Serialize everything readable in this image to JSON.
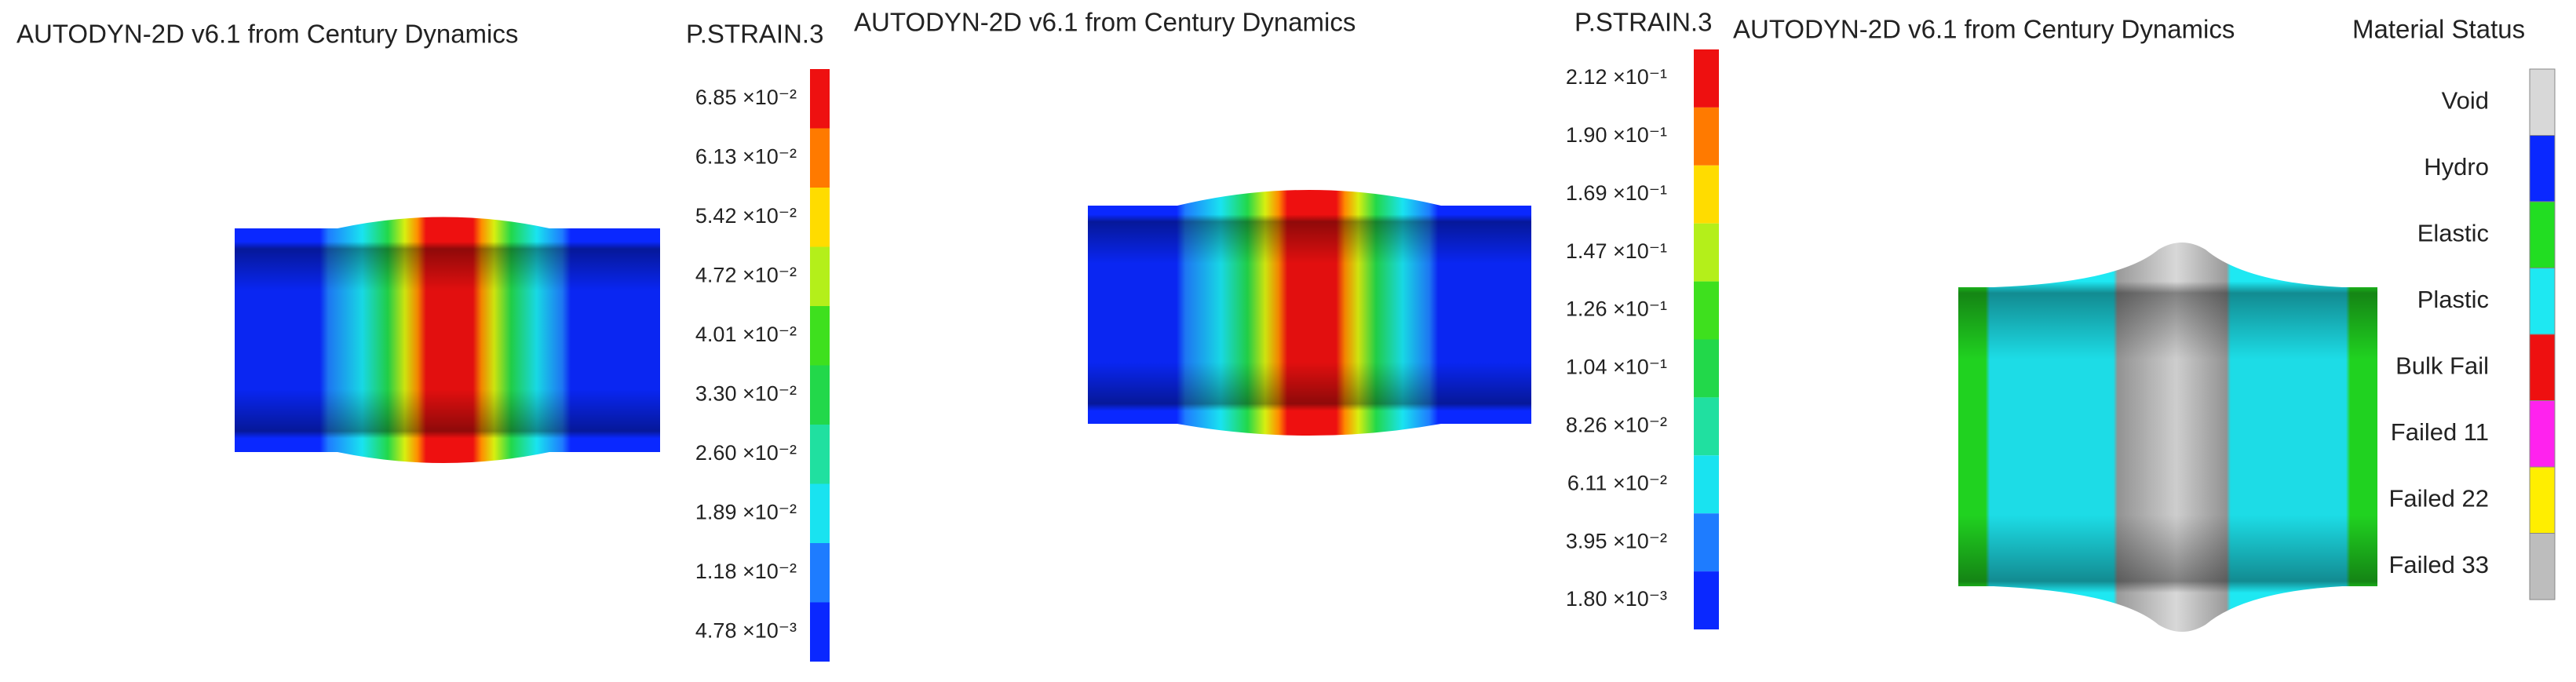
{
  "panels": [
    {
      "title": "AUTODYN-2D v6.1 from Century Dynamics",
      "legend_title": "P.STRAIN.3",
      "legend_labels": [
        "6.85 ×10⁻²",
        "6.13 ×10⁻²",
        "5.42 ×10⁻²",
        "4.72 ×10⁻²",
        "4.01 ×10⁻²",
        "3.30 ×10⁻²",
        "2.60 ×10⁻²",
        "1.89 ×10⁻²",
        "1.18 ×10⁻²",
        "4.78 ×10⁻³"
      ]
    },
    {
      "title": "AUTODYN-2D v6.1 from Century Dynamics",
      "legend_title": "P.STRAIN.3",
      "legend_labels": [
        "2.12 ×10⁻¹",
        "1.90 ×10⁻¹",
        "1.69 ×10⁻¹",
        "1.47 ×10⁻¹",
        "1.26 ×10⁻¹",
        "1.04 ×10⁻¹",
        "8.26 ×10⁻²",
        "6.11 ×10⁻²",
        "3.95 ×10⁻²",
        "1.80 ×10⁻³"
      ]
    },
    {
      "title": "AUTODYN-2D v6.1 from Century Dynamics",
      "legend_title": "Material Status",
      "legend_labels": [
        "Void",
        "Hydro",
        "Elastic",
        "Plastic",
        "Bulk Fail",
        "Failed 11",
        "Failed 22",
        "Failed 33"
      ]
    }
  ]
}
